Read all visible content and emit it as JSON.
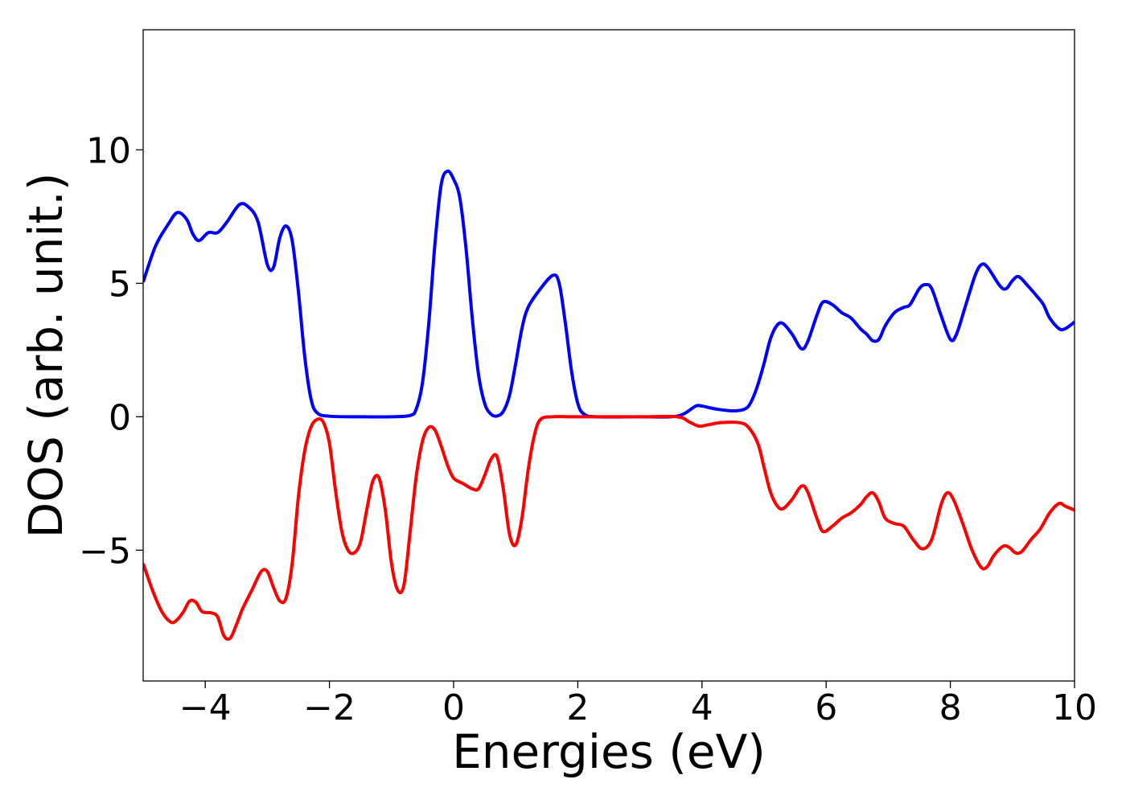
{
  "chart_data": {
    "type": "line",
    "xlabel": "Energies (eV)",
    "ylabel": "DOS (arb. unit.)",
    "xlim": [
      -5,
      10
    ],
    "ylim": [
      -9.9,
      14.5
    ],
    "x_ticks": [
      -4,
      -2,
      0,
      2,
      4,
      6,
      8,
      10
    ],
    "x_tick_labels": [
      "−4",
      "−2",
      "0",
      "2",
      "4",
      "6",
      "8",
      "10"
    ],
    "y_ticks": [
      -5,
      0,
      5,
      10
    ],
    "y_tick_labels": [
      "−5",
      "0",
      "5",
      "10"
    ],
    "grid": false,
    "legend": "none",
    "series": [
      {
        "color": "#0000ff",
        "points": [
          [
            -5.0,
            5.05
          ],
          [
            -4.8,
            6.4
          ],
          [
            -4.6,
            7.2
          ],
          [
            -4.45,
            7.65
          ],
          [
            -4.3,
            7.4
          ],
          [
            -4.2,
            6.85
          ],
          [
            -4.1,
            6.6
          ],
          [
            -3.95,
            6.9
          ],
          [
            -3.8,
            6.9
          ],
          [
            -3.65,
            7.3
          ],
          [
            -3.45,
            7.95
          ],
          [
            -3.3,
            7.85
          ],
          [
            -3.15,
            7.3
          ],
          [
            -3.0,
            5.7
          ],
          [
            -2.9,
            5.6
          ],
          [
            -2.8,
            6.7
          ],
          [
            -2.7,
            7.15
          ],
          [
            -2.6,
            6.6
          ],
          [
            -2.5,
            4.7
          ],
          [
            -2.4,
            2.3
          ],
          [
            -2.3,
            0.7
          ],
          [
            -2.2,
            0.15
          ],
          [
            -2.0,
            0.02
          ],
          [
            -1.5,
            0.0
          ],
          [
            -1.0,
            0.0
          ],
          [
            -0.7,
            0.05
          ],
          [
            -0.6,
            0.3
          ],
          [
            -0.5,
            1.3
          ],
          [
            -0.4,
            3.5
          ],
          [
            -0.3,
            6.5
          ],
          [
            -0.2,
            8.7
          ],
          [
            -0.1,
            9.2
          ],
          [
            0.0,
            8.9
          ],
          [
            0.1,
            8.2
          ],
          [
            0.2,
            6.3
          ],
          [
            0.3,
            3.7
          ],
          [
            0.4,
            1.6
          ],
          [
            0.5,
            0.5
          ],
          [
            0.6,
            0.1
          ],
          [
            0.7,
            0.03
          ],
          [
            0.8,
            0.2
          ],
          [
            0.9,
            0.8
          ],
          [
            1.0,
            2.0
          ],
          [
            1.1,
            3.3
          ],
          [
            1.2,
            4.1
          ],
          [
            1.4,
            4.8
          ],
          [
            1.6,
            5.3
          ],
          [
            1.7,
            5.0
          ],
          [
            1.8,
            3.5
          ],
          [
            1.9,
            1.7
          ],
          [
            2.0,
            0.5
          ],
          [
            2.1,
            0.1
          ],
          [
            2.3,
            0.0
          ],
          [
            3.0,
            0.0
          ],
          [
            3.5,
            0.0
          ],
          [
            3.7,
            0.1
          ],
          [
            3.9,
            0.4
          ],
          [
            4.0,
            0.4
          ],
          [
            4.2,
            0.3
          ],
          [
            4.5,
            0.22
          ],
          [
            4.7,
            0.3
          ],
          [
            4.8,
            0.6
          ],
          [
            4.9,
            1.2
          ],
          [
            5.0,
            2.0
          ],
          [
            5.1,
            2.9
          ],
          [
            5.2,
            3.4
          ],
          [
            5.3,
            3.5
          ],
          [
            5.45,
            3.1
          ],
          [
            5.6,
            2.55
          ],
          [
            5.7,
            2.8
          ],
          [
            5.85,
            3.8
          ],
          [
            5.95,
            4.3
          ],
          [
            6.1,
            4.2
          ],
          [
            6.25,
            3.9
          ],
          [
            6.4,
            3.7
          ],
          [
            6.55,
            3.3
          ],
          [
            6.65,
            3.1
          ],
          [
            6.75,
            2.85
          ],
          [
            6.85,
            2.9
          ],
          [
            6.95,
            3.4
          ],
          [
            7.1,
            3.9
          ],
          [
            7.25,
            4.1
          ],
          [
            7.35,
            4.2
          ],
          [
            7.5,
            4.8
          ],
          [
            7.6,
            4.95
          ],
          [
            7.7,
            4.8
          ],
          [
            7.85,
            3.8
          ],
          [
            8.0,
            2.9
          ],
          [
            8.1,
            3.1
          ],
          [
            8.25,
            4.2
          ],
          [
            8.4,
            5.3
          ],
          [
            8.5,
            5.7
          ],
          [
            8.6,
            5.6
          ],
          [
            8.8,
            4.9
          ],
          [
            8.9,
            4.8
          ],
          [
            9.0,
            5.1
          ],
          [
            9.1,
            5.25
          ],
          [
            9.25,
            4.9
          ],
          [
            9.4,
            4.5
          ],
          [
            9.5,
            4.2
          ],
          [
            9.6,
            3.7
          ],
          [
            9.75,
            3.3
          ],
          [
            9.85,
            3.3
          ],
          [
            10.0,
            3.55
          ]
        ]
      },
      {
        "color": "#ff0000",
        "points": [
          [
            -5.0,
            -5.5
          ],
          [
            -4.85,
            -6.5
          ],
          [
            -4.7,
            -7.3
          ],
          [
            -4.55,
            -7.7
          ],
          [
            -4.45,
            -7.6
          ],
          [
            -4.35,
            -7.3
          ],
          [
            -4.25,
            -6.9
          ],
          [
            -4.15,
            -6.95
          ],
          [
            -4.05,
            -7.3
          ],
          [
            -3.9,
            -7.35
          ],
          [
            -3.8,
            -7.5
          ],
          [
            -3.7,
            -8.2
          ],
          [
            -3.6,
            -8.3
          ],
          [
            -3.5,
            -7.8
          ],
          [
            -3.4,
            -7.2
          ],
          [
            -3.25,
            -6.5
          ],
          [
            -3.1,
            -5.8
          ],
          [
            -3.0,
            -5.8
          ],
          [
            -2.9,
            -6.4
          ],
          [
            -2.8,
            -6.9
          ],
          [
            -2.7,
            -6.8
          ],
          [
            -2.6,
            -5.5
          ],
          [
            -2.5,
            -3.0
          ],
          [
            -2.4,
            -1.3
          ],
          [
            -2.3,
            -0.4
          ],
          [
            -2.2,
            -0.1
          ],
          [
            -2.1,
            -0.2
          ],
          [
            -2.0,
            -1.0
          ],
          [
            -1.9,
            -2.8
          ],
          [
            -1.8,
            -4.3
          ],
          [
            -1.7,
            -5.0
          ],
          [
            -1.6,
            -5.1
          ],
          [
            -1.5,
            -4.7
          ],
          [
            -1.4,
            -3.5
          ],
          [
            -1.3,
            -2.4
          ],
          [
            -1.2,
            -2.3
          ],
          [
            -1.1,
            -3.5
          ],
          [
            -1.0,
            -5.5
          ],
          [
            -0.9,
            -6.5
          ],
          [
            -0.8,
            -6.3
          ],
          [
            -0.7,
            -4.3
          ],
          [
            -0.6,
            -2.2
          ],
          [
            -0.5,
            -0.9
          ],
          [
            -0.4,
            -0.4
          ],
          [
            -0.3,
            -0.5
          ],
          [
            -0.2,
            -1.1
          ],
          [
            -0.1,
            -1.8
          ],
          [
            0.0,
            -2.3
          ],
          [
            0.15,
            -2.5
          ],
          [
            0.3,
            -2.7
          ],
          [
            0.4,
            -2.7
          ],
          [
            0.5,
            -2.2
          ],
          [
            0.6,
            -1.6
          ],
          [
            0.7,
            -1.5
          ],
          [
            0.8,
            -2.7
          ],
          [
            0.9,
            -4.4
          ],
          [
            1.0,
            -4.8
          ],
          [
            1.1,
            -3.8
          ],
          [
            1.2,
            -2.0
          ],
          [
            1.3,
            -0.7
          ],
          [
            1.4,
            -0.1
          ],
          [
            1.6,
            0.0
          ],
          [
            2.0,
            0.0
          ],
          [
            3.0,
            0.0
          ],
          [
            3.6,
            0.0
          ],
          [
            3.8,
            -0.2
          ],
          [
            3.95,
            -0.35
          ],
          [
            4.1,
            -0.3
          ],
          [
            4.3,
            -0.22
          ],
          [
            4.6,
            -0.22
          ],
          [
            4.75,
            -0.4
          ],
          [
            4.9,
            -1.0
          ],
          [
            5.0,
            -1.9
          ],
          [
            5.1,
            -2.8
          ],
          [
            5.2,
            -3.3
          ],
          [
            5.3,
            -3.45
          ],
          [
            5.45,
            -3.1
          ],
          [
            5.6,
            -2.6
          ],
          [
            5.7,
            -2.8
          ],
          [
            5.85,
            -3.8
          ],
          [
            5.95,
            -4.3
          ],
          [
            6.1,
            -4.1
          ],
          [
            6.25,
            -3.8
          ],
          [
            6.4,
            -3.6
          ],
          [
            6.55,
            -3.3
          ],
          [
            6.65,
            -3.0
          ],
          [
            6.75,
            -2.85
          ],
          [
            6.85,
            -3.2
          ],
          [
            6.95,
            -3.8
          ],
          [
            7.1,
            -4.0
          ],
          [
            7.25,
            -4.1
          ],
          [
            7.4,
            -4.6
          ],
          [
            7.55,
            -4.95
          ],
          [
            7.7,
            -4.6
          ],
          [
            7.85,
            -3.3
          ],
          [
            7.95,
            -2.85
          ],
          [
            8.05,
            -3.1
          ],
          [
            8.2,
            -4.0
          ],
          [
            8.35,
            -5.0
          ],
          [
            8.5,
            -5.65
          ],
          [
            8.6,
            -5.6
          ],
          [
            8.7,
            -5.2
          ],
          [
            8.85,
            -4.85
          ],
          [
            8.95,
            -4.9
          ],
          [
            9.05,
            -5.1
          ],
          [
            9.15,
            -5.05
          ],
          [
            9.3,
            -4.6
          ],
          [
            9.45,
            -4.2
          ],
          [
            9.6,
            -3.6
          ],
          [
            9.75,
            -3.25
          ],
          [
            9.85,
            -3.35
          ],
          [
            10.0,
            -3.5
          ]
        ]
      }
    ]
  }
}
